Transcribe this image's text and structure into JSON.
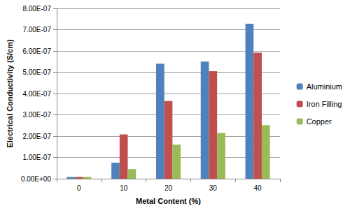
{
  "chart_data": {
    "type": "bar",
    "x_label": "Metal Content (%)",
    "y_label": "Electrical Conductivity (S/cm)",
    "categories": [
      "0",
      "10",
      "20",
      "30",
      "40"
    ],
    "series": [
      {
        "name": "Aluminium",
        "color": "#4f81bd",
        "values": [
          8e-09,
          7.5e-08,
          5.4e-07,
          5.5e-07,
          7.28e-07
        ]
      },
      {
        "name": "Iron Filling",
        "color": "#c0504d",
        "values": [
          8e-09,
          2.08e-07,
          3.65e-07,
          5.05e-07,
          5.92e-07
        ]
      },
      {
        "name": "Copper",
        "color": "#9bbb59",
        "values": [
          8e-09,
          4.5e-08,
          1.6e-07,
          2.15e-07,
          2.52e-07
        ]
      }
    ],
    "ylim": [
      0,
      8e-07
    ],
    "yticks": [
      {
        "value": 0,
        "label": "0.00E+00"
      },
      {
        "value": 1e-07,
        "label": "1.00E-07"
      },
      {
        "value": 2e-07,
        "label": "2.00E-07"
      },
      {
        "value": 3e-07,
        "label": "3.00E-07"
      },
      {
        "value": 4e-07,
        "label": "4.00E-07"
      },
      {
        "value": 5e-07,
        "label": "5.00E-07"
      },
      {
        "value": 6e-07,
        "label": "6.00E-07"
      },
      {
        "value": 7e-07,
        "label": "7.00E-07"
      },
      {
        "value": 8e-07,
        "label": "8.00E-07"
      }
    ],
    "grid": true,
    "legend": "right"
  }
}
